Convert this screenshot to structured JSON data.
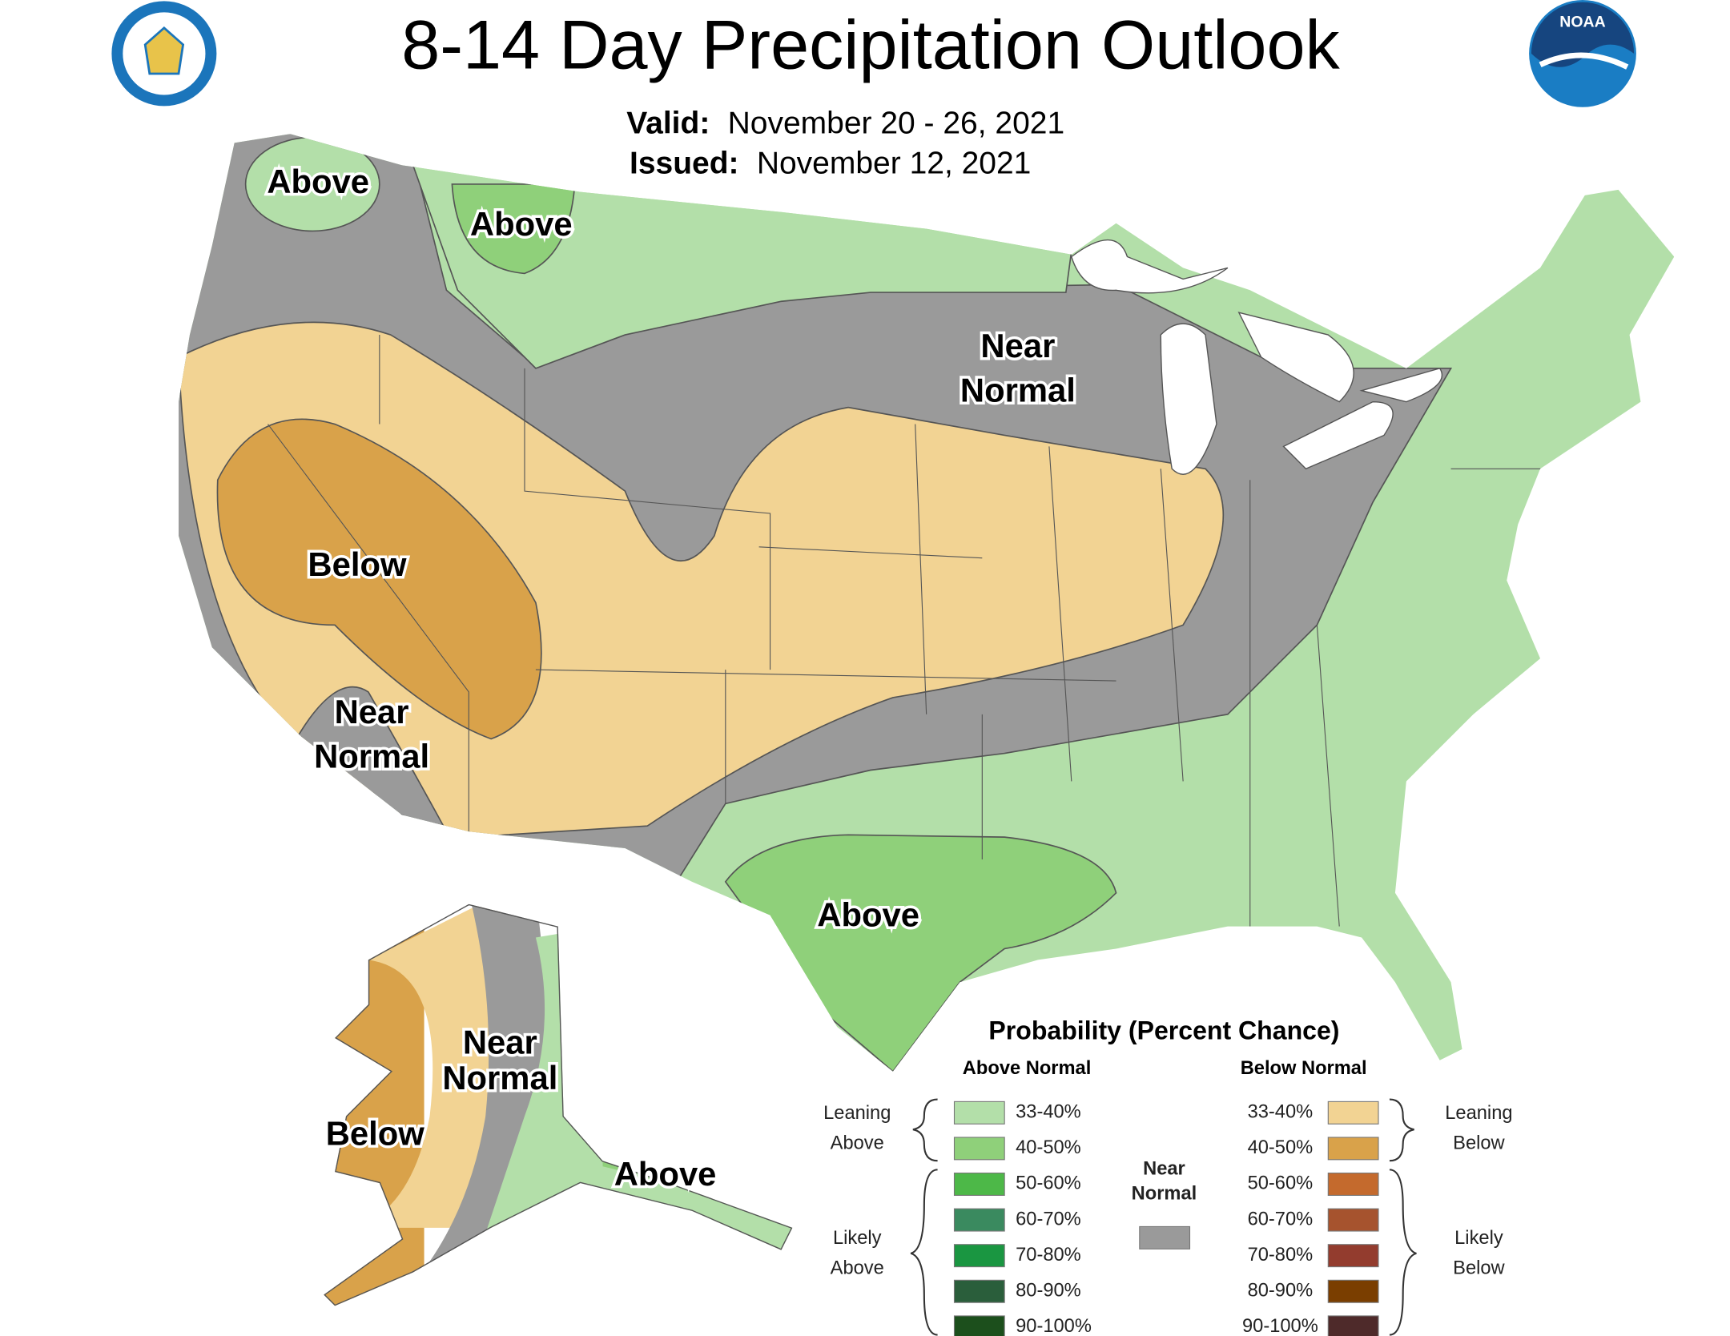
{
  "header": {
    "title": "8-14 Day Precipitation Outlook",
    "valid_label": "Valid:",
    "valid_dates": "November 20 - 26, 2021",
    "issued_label": "Issued:",
    "issued_date": "November 12, 2021"
  },
  "map_labels": [
    {
      "lines": [
        "Above"
      ]
    },
    {
      "lines": [
        "Above"
      ]
    },
    {
      "lines": [
        "Near",
        "Normal"
      ]
    },
    {
      "lines": [
        "Below"
      ]
    },
    {
      "lines": [
        "Near",
        "Normal"
      ]
    },
    {
      "lines": [
        "Above"
      ]
    },
    {
      "lines": [
        "Near",
        "Normal"
      ]
    },
    {
      "lines": [
        "Below"
      ]
    },
    {
      "lines": [
        "Above"
      ]
    }
  ],
  "legend": {
    "title": "Probability (Percent Chance)",
    "above_header": "Above Normal",
    "below_header": "Below Normal",
    "near": {
      "lines": [
        "Near",
        "Normal"
      ],
      "color": "#9a9a9a"
    },
    "leaning_above": [
      "Leaning",
      "Above"
    ],
    "likely_above": [
      "Likely",
      "Above"
    ],
    "leaning_below": [
      "Leaning",
      "Below"
    ],
    "likely_below": [
      "Likely",
      "Below"
    ],
    "above_items": [
      {
        "label": "33-40%",
        "color": "#b3dfa9"
      },
      {
        "label": "40-50%",
        "color": "#8fd07a"
      },
      {
        "label": "50-60%",
        "color": "#4db848"
      },
      {
        "label": "60-70%",
        "color": "#3a8a5f"
      },
      {
        "label": "70-80%",
        "color": "#1a9641"
      },
      {
        "label": "80-90%",
        "color": "#2a5e3b"
      },
      {
        "label": "90-100%",
        "color": "#1c4f1c"
      }
    ],
    "below_items": [
      {
        "label": "33-40%",
        "color": "#f2d393"
      },
      {
        "label": "40-50%",
        "color": "#d9a24a"
      },
      {
        "label": "50-60%",
        "color": "#c46a2d"
      },
      {
        "label": "60-70%",
        "color": "#a6532e"
      },
      {
        "label": "70-80%",
        "color": "#933c2e"
      },
      {
        "label": "80-90%",
        "color": "#7a3e00"
      },
      {
        "label": "90-100%",
        "color": "#4e2a2a"
      }
    ]
  }
}
